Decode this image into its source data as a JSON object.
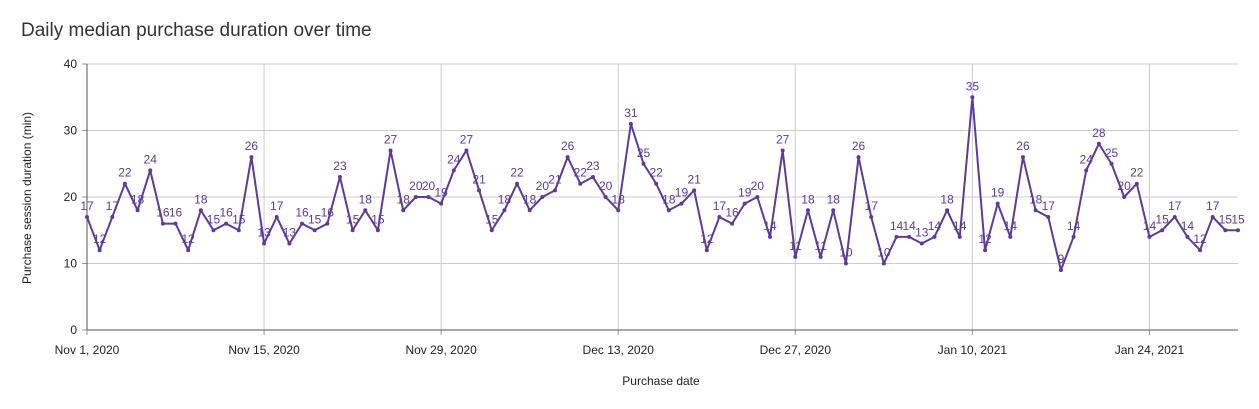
{
  "chart_data": {
    "type": "line",
    "title": "Daily median purchase duration over time",
    "xlabel": "Purchase date",
    "ylabel": "Purchase session duration (min)",
    "ylim": [
      0,
      40
    ],
    "yticks": [
      0,
      10,
      20,
      30,
      40
    ],
    "x_start": "2020-11-01",
    "x_end": "2021-01-31",
    "xticks": [
      {
        "date": "2020-11-01",
        "label": "Nov 1, 2020"
      },
      {
        "date": "2020-11-15",
        "label": "Nov 15, 2020"
      },
      {
        "date": "2020-11-29",
        "label": "Nov 29, 2020"
      },
      {
        "date": "2020-12-13",
        "label": "Dec 13, 2020"
      },
      {
        "date": "2020-12-27",
        "label": "Dec 27, 2020"
      },
      {
        "date": "2021-01-10",
        "label": "Jan 10, 2021"
      },
      {
        "date": "2021-01-24",
        "label": "Jan 24, 2021"
      }
    ],
    "grid": true,
    "line_color": "#5e3a9c",
    "series": [
      {
        "values": [
          17,
          12,
          17,
          22,
          18,
          24,
          16,
          16,
          12,
          18,
          15,
          16,
          15,
          26,
          13,
          17,
          13,
          16,
          15,
          16,
          23,
          15,
          18,
          15,
          27,
          18,
          20,
          20,
          19,
          24,
          27,
          21,
          15,
          18,
          22,
          18,
          20,
          21,
          26,
          22,
          23,
          20,
          18,
          31,
          25,
          22,
          18,
          19,
          21,
          12,
          17,
          16,
          19,
          20,
          14,
          27,
          11,
          18,
          11,
          18,
          10,
          26,
          17,
          10,
          14,
          14,
          13,
          14,
          18,
          14,
          35,
          12,
          19,
          14,
          26,
          18,
          17,
          9,
          14,
          24,
          28,
          25,
          20,
          22,
          14,
          15,
          17,
          14,
          12,
          17,
          15,
          15
        ]
      }
    ]
  }
}
